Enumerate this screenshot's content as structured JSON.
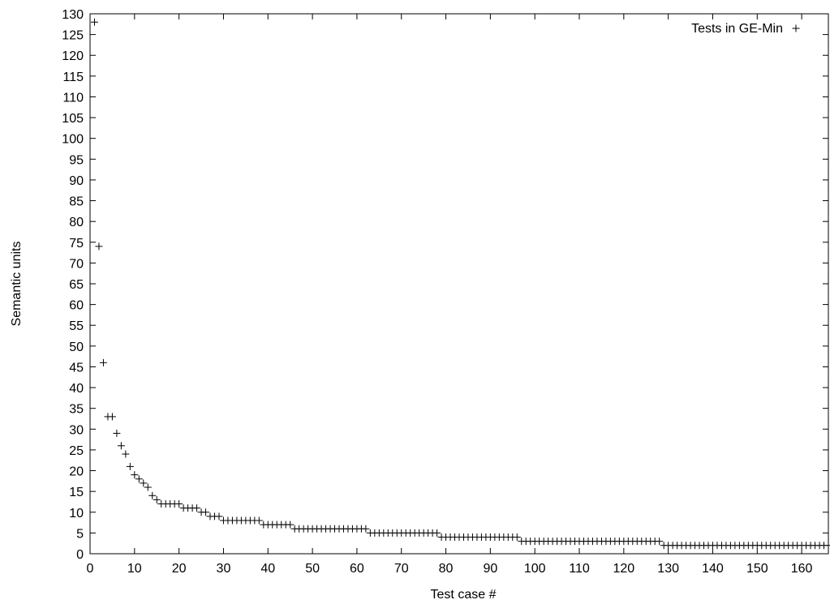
{
  "chart_data": {
    "type": "scatter",
    "title": "",
    "xlabel": "Test case #",
    "ylabel": "Semantic units",
    "xlim": [
      0,
      166
    ],
    "ylim": [
      0,
      130
    ],
    "x_ticks": [
      0,
      10,
      20,
      30,
      40,
      50,
      60,
      70,
      80,
      90,
      100,
      110,
      120,
      130,
      140,
      150,
      160
    ],
    "y_ticks": [
      0,
      5,
      10,
      15,
      20,
      25,
      30,
      35,
      40,
      45,
      50,
      55,
      60,
      65,
      70,
      75,
      80,
      85,
      90,
      95,
      100,
      105,
      110,
      115,
      120,
      125,
      130
    ],
    "grid": false,
    "legend_position": "top-right",
    "marker": "plus",
    "series": [
      {
        "name": "Tests in GE-Min",
        "x": [
          1,
          2,
          3,
          4,
          5,
          6,
          7,
          8,
          9,
          10,
          11,
          12,
          13,
          14,
          15,
          16,
          17,
          18,
          19,
          20,
          21,
          22,
          23,
          24,
          25,
          26,
          27,
          28,
          29,
          30,
          31,
          32,
          33,
          34,
          35,
          36,
          37,
          38,
          39,
          40,
          41,
          42,
          43,
          44,
          45,
          46,
          47,
          48,
          49,
          50,
          51,
          52,
          53,
          54,
          55,
          56,
          57,
          58,
          59,
          60,
          61,
          62,
          63,
          64,
          65,
          66,
          67,
          68,
          69,
          70,
          71,
          72,
          73,
          74,
          75,
          76,
          77,
          78,
          79,
          80,
          81,
          82,
          83,
          84,
          85,
          86,
          87,
          88,
          89,
          90,
          91,
          92,
          93,
          94,
          95,
          96,
          97,
          98,
          99,
          100,
          101,
          102,
          103,
          104,
          105,
          106,
          107,
          108,
          109,
          110,
          111,
          112,
          113,
          114,
          115,
          116,
          117,
          118,
          119,
          120,
          121,
          122,
          123,
          124,
          125,
          126,
          127,
          128,
          129,
          130,
          131,
          132,
          133,
          134,
          135,
          136,
          137,
          138,
          139,
          140,
          141,
          142,
          143,
          144,
          145,
          146,
          147,
          148,
          149,
          150,
          151,
          152,
          153,
          154,
          155,
          156,
          157,
          158,
          159,
          160,
          161,
          162,
          163,
          164,
          165,
          166
        ],
        "y": [
          128,
          74,
          46,
          33,
          33,
          29,
          26,
          24,
          21,
          19,
          18,
          17,
          16,
          14,
          13,
          12,
          12,
          12,
          12,
          12,
          11,
          11,
          11,
          11,
          10,
          10,
          9,
          9,
          9,
          8,
          8,
          8,
          8,
          8,
          8,
          8,
          8,
          8,
          7,
          7,
          7,
          7,
          7,
          7,
          7,
          6,
          6,
          6,
          6,
          6,
          6,
          6,
          6,
          6,
          6,
          6,
          6,
          6,
          6,
          6,
          6,
          6,
          5,
          5,
          5,
          5,
          5,
          5,
          5,
          5,
          5,
          5,
          5,
          5,
          5,
          5,
          5,
          5,
          4,
          4,
          4,
          4,
          4,
          4,
          4,
          4,
          4,
          4,
          4,
          4,
          4,
          4,
          4,
          4,
          4,
          4,
          3,
          3,
          3,
          3,
          3,
          3,
          3,
          3,
          3,
          3,
          3,
          3,
          3,
          3,
          3,
          3,
          3,
          3,
          3,
          3,
          3,
          3,
          3,
          3,
          3,
          3,
          3,
          3,
          3,
          3,
          3,
          3,
          2,
          2,
          2,
          2,
          2,
          2,
          2,
          2,
          2,
          2,
          2,
          2,
          2,
          2,
          2,
          2,
          2,
          2,
          2,
          2,
          2,
          2,
          2,
          2,
          2,
          2,
          2,
          2,
          2,
          2,
          2,
          2,
          2,
          2,
          2,
          2,
          2,
          2
        ]
      }
    ]
  }
}
